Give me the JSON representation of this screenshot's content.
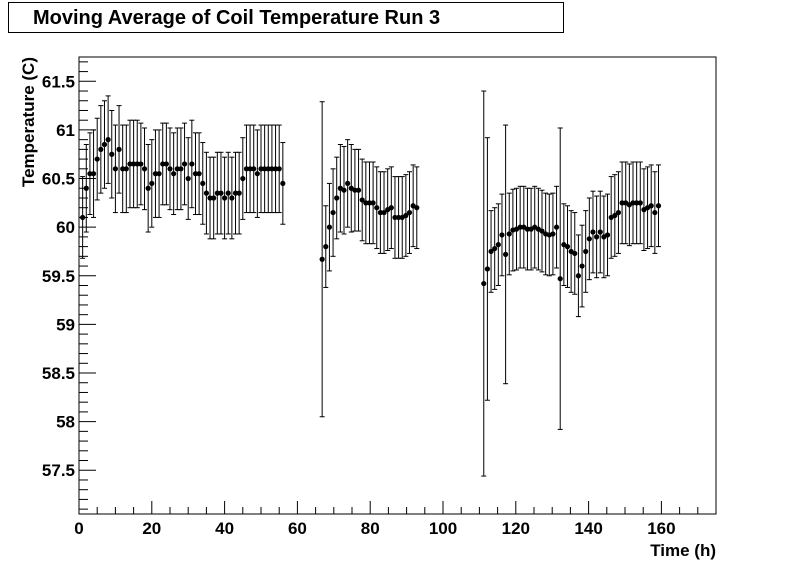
{
  "chart_data": {
    "type": "scatter",
    "title": "Moving Average of Coil Temperature Run 3",
    "xlabel": "Time (h)",
    "ylabel": "Temperature (C)",
    "xlim": [
      0,
      175
    ],
    "ylim": [
      57.05,
      61.75
    ],
    "xticks": [
      "0",
      "20",
      "40",
      "60",
      "80",
      "100",
      "120",
      "140",
      "160"
    ],
    "yticks": [
      "57.5",
      "58",
      "58.5",
      "59",
      "59.5",
      "60",
      "60.5",
      "61",
      "61.5"
    ],
    "grid": false,
    "series": [
      {
        "marker": "circle",
        "color": "#000000",
        "points": [
          {
            "x": 1,
            "y": 60.1,
            "err": 0.42
          },
          {
            "x": 2,
            "y": 60.4,
            "err": 0.45
          },
          {
            "x": 3,
            "y": 60.55,
            "err": 0.42
          },
          {
            "x": 4,
            "y": 60.55,
            "err": 0.45
          },
          {
            "x": 5,
            "y": 60.7,
            "err": 0.42
          },
          {
            "x": 6,
            "y": 60.8,
            "err": 0.45
          },
          {
            "x": 7,
            "y": 60.85,
            "err": 0.45
          },
          {
            "x": 8,
            "y": 60.9,
            "err": 0.45
          },
          {
            "x": 9,
            "y": 60.75,
            "err": 0.45
          },
          {
            "x": 10,
            "y": 60.6,
            "err": 0.45
          },
          {
            "x": 11,
            "y": 60.8,
            "err": 0.45
          },
          {
            "x": 12,
            "y": 60.6,
            "err": 0.45
          },
          {
            "x": 13,
            "y": 60.6,
            "err": 0.45
          },
          {
            "x": 14,
            "y": 60.65,
            "err": 0.45
          },
          {
            "x": 15,
            "y": 60.65,
            "err": 0.45
          },
          {
            "x": 16,
            "y": 60.65,
            "err": 0.45
          },
          {
            "x": 17,
            "y": 60.65,
            "err": 0.42
          },
          {
            "x": 18,
            "y": 60.6,
            "err": 0.42
          },
          {
            "x": 19,
            "y": 60.4,
            "err": 0.45
          },
          {
            "x": 20,
            "y": 60.45,
            "err": 0.45
          },
          {
            "x": 21,
            "y": 60.55,
            "err": 0.45
          },
          {
            "x": 22,
            "y": 60.55,
            "err": 0.45
          },
          {
            "x": 23,
            "y": 60.65,
            "err": 0.42
          },
          {
            "x": 24,
            "y": 60.65,
            "err": 0.42
          },
          {
            "x": 25,
            "y": 60.6,
            "err": 0.42
          },
          {
            "x": 26,
            "y": 60.55,
            "err": 0.42
          },
          {
            "x": 27,
            "y": 60.6,
            "err": 0.42
          },
          {
            "x": 28,
            "y": 60.6,
            "err": 0.42
          },
          {
            "x": 29,
            "y": 60.65,
            "err": 0.42
          },
          {
            "x": 30,
            "y": 60.5,
            "err": 0.42
          },
          {
            "x": 31,
            "y": 60.65,
            "err": 0.45
          },
          {
            "x": 32,
            "y": 60.55,
            "err": 0.42
          },
          {
            "x": 33,
            "y": 60.55,
            "err": 0.42
          },
          {
            "x": 34,
            "y": 60.45,
            "err": 0.42
          },
          {
            "x": 35,
            "y": 60.35,
            "err": 0.42
          },
          {
            "x": 36,
            "y": 60.3,
            "err": 0.42
          },
          {
            "x": 37,
            "y": 60.3,
            "err": 0.42
          },
          {
            "x": 38,
            "y": 60.35,
            "err": 0.42
          },
          {
            "x": 39,
            "y": 60.35,
            "err": 0.42
          },
          {
            "x": 40,
            "y": 60.3,
            "err": 0.42
          },
          {
            "x": 41,
            "y": 60.35,
            "err": 0.42
          },
          {
            "x": 42,
            "y": 60.3,
            "err": 0.42
          },
          {
            "x": 43,
            "y": 60.35,
            "err": 0.42
          },
          {
            "x": 44,
            "y": 60.35,
            "err": 0.42
          },
          {
            "x": 45,
            "y": 60.5,
            "err": 0.42
          },
          {
            "x": 46,
            "y": 60.6,
            "err": 0.45
          },
          {
            "x": 47,
            "y": 60.6,
            "err": 0.45
          },
          {
            "x": 48,
            "y": 60.6,
            "err": 0.45
          },
          {
            "x": 49,
            "y": 60.55,
            "err": 0.45
          },
          {
            "x": 50,
            "y": 60.6,
            "err": 0.45
          },
          {
            "x": 51,
            "y": 60.6,
            "err": 0.45
          },
          {
            "x": 52,
            "y": 60.6,
            "err": 0.45
          },
          {
            "x": 53,
            "y": 60.6,
            "err": 0.45
          },
          {
            "x": 54,
            "y": 60.6,
            "err": 0.45
          },
          {
            "x": 55,
            "y": 60.6,
            "err": 0.45
          },
          {
            "x": 56,
            "y": 60.45,
            "err": 0.42
          },
          {
            "x": 66.8,
            "y": 59.67,
            "err": 1.62
          },
          {
            "x": 67.8,
            "y": 59.8,
            "err": 0.42
          },
          {
            "x": 68.8,
            "y": 60.0,
            "err": 0.45
          },
          {
            "x": 69.8,
            "y": 60.15,
            "err": 0.45
          },
          {
            "x": 70.8,
            "y": 60.3,
            "err": 0.42
          },
          {
            "x": 71.8,
            "y": 60.4,
            "err": 0.45
          },
          {
            "x": 72.8,
            "y": 60.38,
            "err": 0.45
          },
          {
            "x": 73.8,
            "y": 60.45,
            "err": 0.45
          },
          {
            "x": 74.8,
            "y": 60.4,
            "err": 0.45
          },
          {
            "x": 75.8,
            "y": 60.38,
            "err": 0.42
          },
          {
            "x": 76.8,
            "y": 60.38,
            "err": 0.42
          },
          {
            "x": 77.8,
            "y": 60.28,
            "err": 0.42
          },
          {
            "x": 78.8,
            "y": 60.25,
            "err": 0.42
          },
          {
            "x": 79.8,
            "y": 60.25,
            "err": 0.42
          },
          {
            "x": 80.8,
            "y": 60.25,
            "err": 0.42
          },
          {
            "x": 81.8,
            "y": 60.2,
            "err": 0.42
          },
          {
            "x": 82.8,
            "y": 60.15,
            "err": 0.42
          },
          {
            "x": 83.8,
            "y": 60.15,
            "err": 0.42
          },
          {
            "x": 84.8,
            "y": 60.18,
            "err": 0.42
          },
          {
            "x": 85.8,
            "y": 60.2,
            "err": 0.42
          },
          {
            "x": 86.8,
            "y": 60.1,
            "err": 0.42
          },
          {
            "x": 87.8,
            "y": 60.1,
            "err": 0.42
          },
          {
            "x": 88.8,
            "y": 60.1,
            "err": 0.42
          },
          {
            "x": 89.8,
            "y": 60.12,
            "err": 0.42
          },
          {
            "x": 90.8,
            "y": 60.15,
            "err": 0.42
          },
          {
            "x": 91.8,
            "y": 60.22,
            "err": 0.42
          },
          {
            "x": 92.8,
            "y": 60.2,
            "err": 0.42
          },
          {
            "x": 111.2,
            "y": 59.42,
            "err": 1.98
          },
          {
            "x": 112.2,
            "y": 59.57,
            "err": 1.35
          },
          {
            "x": 113.2,
            "y": 59.75,
            "err": 0.42
          },
          {
            "x": 114.2,
            "y": 59.78,
            "err": 0.42
          },
          {
            "x": 115.2,
            "y": 59.82,
            "err": 0.42
          },
          {
            "x": 116.2,
            "y": 59.92,
            "err": 0.42
          },
          {
            "x": 117.2,
            "y": 59.72,
            "err": 1.33
          },
          {
            "x": 118.2,
            "y": 59.93,
            "err": 0.42
          },
          {
            "x": 119.2,
            "y": 59.97,
            "err": 0.42
          },
          {
            "x": 120.2,
            "y": 59.98,
            "err": 0.42
          },
          {
            "x": 121.2,
            "y": 60.0,
            "err": 0.42
          },
          {
            "x": 122.2,
            "y": 60.0,
            "err": 0.42
          },
          {
            "x": 123.2,
            "y": 59.98,
            "err": 0.42
          },
          {
            "x": 124.2,
            "y": 59.98,
            "err": 0.42
          },
          {
            "x": 125.2,
            "y": 60.0,
            "err": 0.42
          },
          {
            "x": 126.2,
            "y": 59.98,
            "err": 0.42
          },
          {
            "x": 127.2,
            "y": 59.96,
            "err": 0.42
          },
          {
            "x": 128.2,
            "y": 59.93,
            "err": 0.42
          },
          {
            "x": 129.2,
            "y": 59.92,
            "err": 0.42
          },
          {
            "x": 130.2,
            "y": 59.93,
            "err": 0.42
          },
          {
            "x": 131.2,
            "y": 60.0,
            "err": 0.42
          },
          {
            "x": 132.2,
            "y": 59.47,
            "err": 1.55
          },
          {
            "x": 133.2,
            "y": 59.82,
            "err": 0.42
          },
          {
            "x": 134.2,
            "y": 59.8,
            "err": 0.42
          },
          {
            "x": 135.2,
            "y": 59.75,
            "err": 0.42
          },
          {
            "x": 136.2,
            "y": 59.73,
            "err": 0.42
          },
          {
            "x": 137.2,
            "y": 59.5,
            "err": 0.42
          },
          {
            "x": 138.2,
            "y": 59.6,
            "err": 0.42
          },
          {
            "x": 139.2,
            "y": 59.75,
            "err": 0.42
          },
          {
            "x": 140.2,
            "y": 59.88,
            "err": 0.42
          },
          {
            "x": 141.2,
            "y": 59.95,
            "err": 0.42
          },
          {
            "x": 142.2,
            "y": 59.9,
            "err": 0.42
          },
          {
            "x": 143.2,
            "y": 59.95,
            "err": 0.42
          },
          {
            "x": 144.2,
            "y": 59.9,
            "err": 0.42
          },
          {
            "x": 145.2,
            "y": 59.92,
            "err": 0.42
          },
          {
            "x": 146.2,
            "y": 60.1,
            "err": 0.42
          },
          {
            "x": 147.2,
            "y": 60.12,
            "err": 0.42
          },
          {
            "x": 148.2,
            "y": 60.15,
            "err": 0.42
          },
          {
            "x": 149.2,
            "y": 60.25,
            "err": 0.42
          },
          {
            "x": 150.2,
            "y": 60.25,
            "err": 0.42
          },
          {
            "x": 151.2,
            "y": 60.23,
            "err": 0.42
          },
          {
            "x": 152.2,
            "y": 60.25,
            "err": 0.42
          },
          {
            "x": 153.2,
            "y": 60.25,
            "err": 0.42
          },
          {
            "x": 154.2,
            "y": 60.25,
            "err": 0.42
          },
          {
            "x": 155.2,
            "y": 60.18,
            "err": 0.42
          },
          {
            "x": 156.2,
            "y": 60.2,
            "err": 0.42
          },
          {
            "x": 157.2,
            "y": 60.22,
            "err": 0.42
          },
          {
            "x": 158.2,
            "y": 60.15,
            "err": 0.42
          },
          {
            "x": 159.2,
            "y": 60.22,
            "err": 0.42
          }
        ]
      }
    ]
  }
}
